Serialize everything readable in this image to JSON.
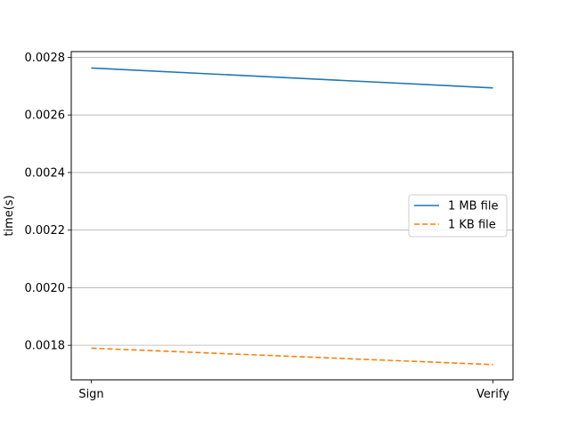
{
  "chart_data": {
    "type": "line",
    "title": "",
    "xlabel": "",
    "ylabel": "time(s)",
    "categories": [
      "Sign",
      "Verify"
    ],
    "ylim": [
      0.00168,
      0.00282
    ],
    "yticks": [
      "0.0018",
      "0.0020",
      "0.0022",
      "0.0024",
      "0.0026",
      "0.0028"
    ],
    "grid": "horizontal",
    "legend_position": "center-right",
    "series": [
      {
        "name": "1 MB file",
        "values": [
          0.002763,
          0.002694
        ],
        "color": "#1f77b4",
        "style": "solid"
      },
      {
        "name": "1 KB file",
        "values": [
          0.00179,
          0.001733
        ],
        "color": "#ff7f0e",
        "style": "dashed"
      }
    ]
  }
}
